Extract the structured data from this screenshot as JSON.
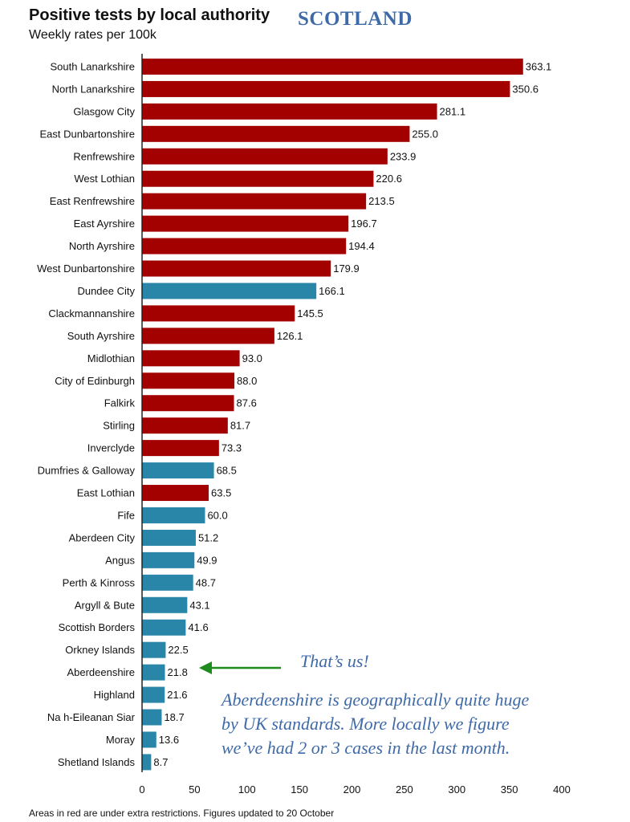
{
  "title": "Positive tests by local authority",
  "subtitle": "Weekly rates per 100k",
  "stamp": "SCOTLAND",
  "colors": {
    "restricted": "#a30000",
    "normal": "#2a86a8",
    "annotation": "#3f6aa8",
    "arrow": "#1e8c1e"
  },
  "chart_data": {
    "type": "bar",
    "orientation": "horizontal",
    "title": "Positive tests by local authority",
    "subtitle": "Weekly rates per 100k",
    "xlim": [
      0,
      400
    ],
    "xticks": [
      0,
      50,
      100,
      150,
      200,
      250,
      300,
      350,
      400
    ],
    "categories": [
      "South Lanarkshire",
      "North Lanarkshire",
      "Glasgow City",
      "East Dunbartonshire",
      "Renfrewshire",
      "West Lothian",
      "East Renfrewshire",
      "East Ayrshire",
      "North Ayrshire",
      "West Dunbartonshire",
      "Dundee City",
      "Clackmannanshire",
      "South Ayrshire",
      "Midlothian",
      "City of Edinburgh",
      "Falkirk",
      "Stirling",
      "Inverclyde",
      "Dumfries & Galloway",
      "East Lothian",
      "Fife",
      "Aberdeen City",
      "Angus",
      "Perth & Kinross",
      "Argyll & Bute",
      "Scottish Borders",
      "Orkney Islands",
      "Aberdeenshire",
      "Highland",
      "Na h-Eileanan Siar",
      "Moray",
      "Shetland Islands"
    ],
    "values": [
      363.1,
      350.6,
      281.1,
      255.0,
      233.9,
      220.6,
      213.5,
      196.7,
      194.4,
      179.9,
      166.1,
      145.5,
      126.1,
      93.0,
      88.0,
      87.6,
      81.7,
      73.3,
      68.5,
      63.5,
      60.0,
      51.2,
      49.9,
      48.7,
      43.1,
      41.6,
      22.5,
      21.8,
      21.6,
      18.7,
      13.6,
      8.7
    ],
    "value_labels": [
      "363.1",
      "350.6",
      "281.1",
      "255.0",
      "233.9",
      "220.6",
      "213.5",
      "196.7",
      "194.4",
      "179.9",
      "166.1",
      "145.5",
      "126.1",
      "93.0",
      "88.0",
      "87.6",
      "81.7",
      "73.3",
      "68.5",
      "63.5",
      "60.0",
      "51.2",
      "49.9",
      "48.7",
      "43.1",
      "41.6",
      "22.5",
      "21.8",
      "21.6",
      "18.7",
      "13.6",
      "8.7"
    ],
    "restricted": [
      true,
      true,
      true,
      true,
      true,
      true,
      true,
      true,
      true,
      true,
      false,
      true,
      true,
      true,
      true,
      true,
      true,
      true,
      false,
      true,
      false,
      false,
      false,
      false,
      false,
      false,
      false,
      false,
      false,
      false,
      false,
      false
    ],
    "grid": false
  },
  "annotations": {
    "us": "That’s us!",
    "note_lines": [
      "Aberdeenshire is geographically quite huge",
      "by UK standards. More locally we figure",
      "we’ve had 2 or 3 cases in the last month."
    ]
  },
  "footnote": "Areas in red are under extra restrictions. Figures updated to 20 October"
}
